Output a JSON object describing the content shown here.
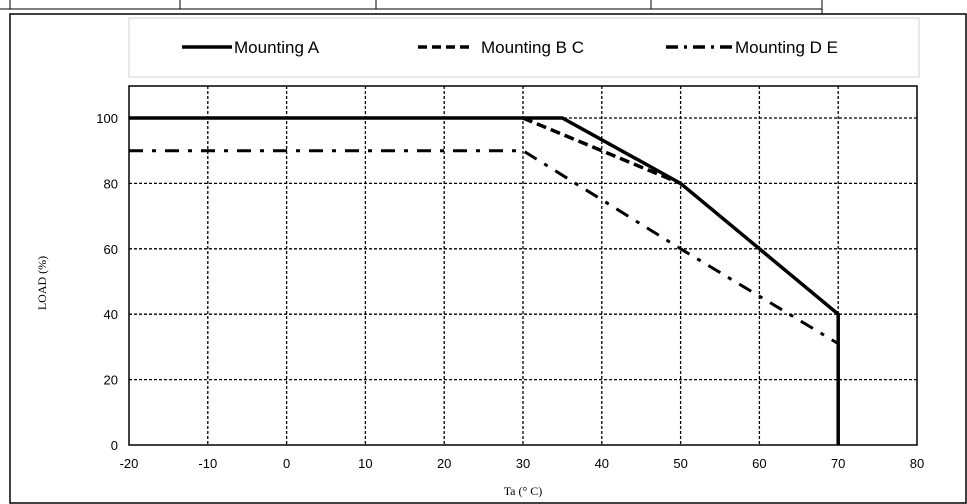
{
  "chart_data": {
    "type": "line",
    "xlabel": "Ta (° C)",
    "ylabel": "LOAD (%)",
    "xlim": [
      -20,
      80
    ],
    "ylim": [
      0,
      110
    ],
    "x_ticks": [
      -20,
      -10,
      0,
      10,
      20,
      30,
      40,
      50,
      60,
      70,
      80
    ],
    "y_ticks": [
      0,
      20,
      40,
      60,
      80,
      100
    ],
    "grid": true,
    "legend_position": "top",
    "series": [
      {
        "name": "Mounting A",
        "style": "solid",
        "points": [
          [
            -20,
            100
          ],
          [
            35,
            100
          ],
          [
            50,
            80
          ],
          [
            70,
            40
          ],
          [
            70,
            0
          ]
        ]
      },
      {
        "name": "Mounting B C",
        "style": "dashed",
        "points": [
          [
            30,
            100
          ],
          [
            50,
            80
          ]
        ]
      },
      {
        "name": "Mounting D E",
        "style": "dashdot",
        "points": [
          [
            -20,
            90
          ],
          [
            30,
            90
          ],
          [
            50,
            60
          ],
          [
            70,
            31
          ]
        ]
      }
    ]
  }
}
